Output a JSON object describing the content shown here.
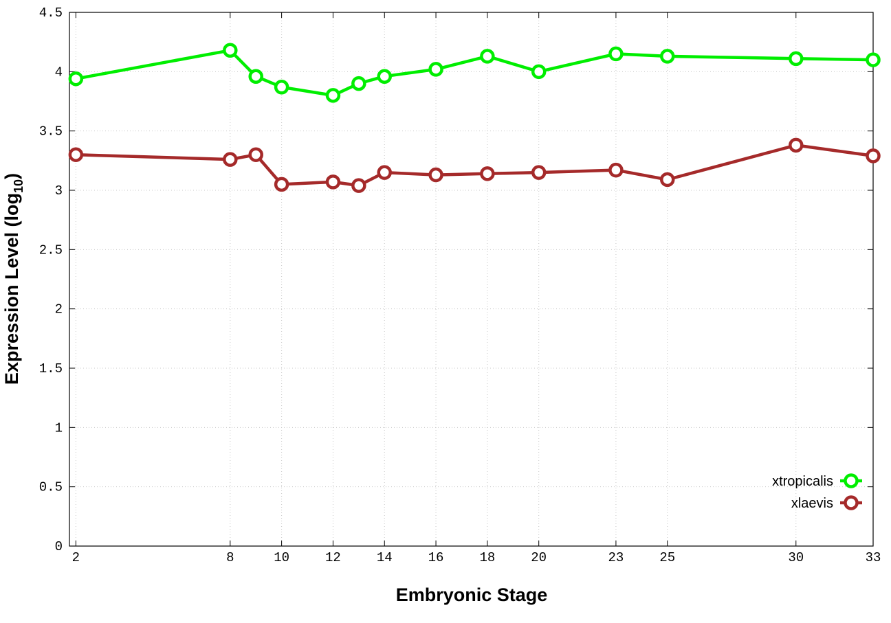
{
  "chart_data": {
    "type": "line",
    "xlabel": "Embryonic Stage",
    "ylabel": "Expression Level (log",
    "ylabel_sub": "10",
    "ylabel_close": ")",
    "xlim": [
      1.75,
      33
    ],
    "ylim": [
      0,
      4.5
    ],
    "x_ticks": [
      2,
      8,
      10,
      12,
      14,
      16,
      18,
      20,
      23,
      25,
      30,
      33
    ],
    "y_ticks": [
      "0",
      "0.5",
      "1",
      "1.5",
      "2",
      "2.5",
      "3",
      "3.5",
      "4",
      "4.5"
    ],
    "grid": true,
    "legend_position": "bottom-right",
    "series": [
      {
        "name": "xtropicalis",
        "color": "#00ee00",
        "x": [
          2,
          8,
          9,
          10,
          12,
          13,
          14,
          16,
          18,
          20,
          23,
          25,
          30,
          33
        ],
        "values": [
          3.94,
          4.18,
          3.96,
          3.87,
          3.8,
          3.9,
          3.96,
          4.02,
          4.13,
          4.0,
          4.15,
          4.13,
          4.11,
          4.1
        ]
      },
      {
        "name": "xlaevis",
        "color": "#a52a2a",
        "x": [
          2,
          8,
          9,
          10,
          12,
          13,
          14,
          16,
          18,
          20,
          23,
          25,
          30,
          33
        ],
        "values": [
          3.3,
          3.26,
          3.3,
          3.05,
          3.07,
          3.04,
          3.15,
          3.13,
          3.14,
          3.15,
          3.17,
          3.09,
          3.38,
          3.29
        ]
      }
    ]
  }
}
